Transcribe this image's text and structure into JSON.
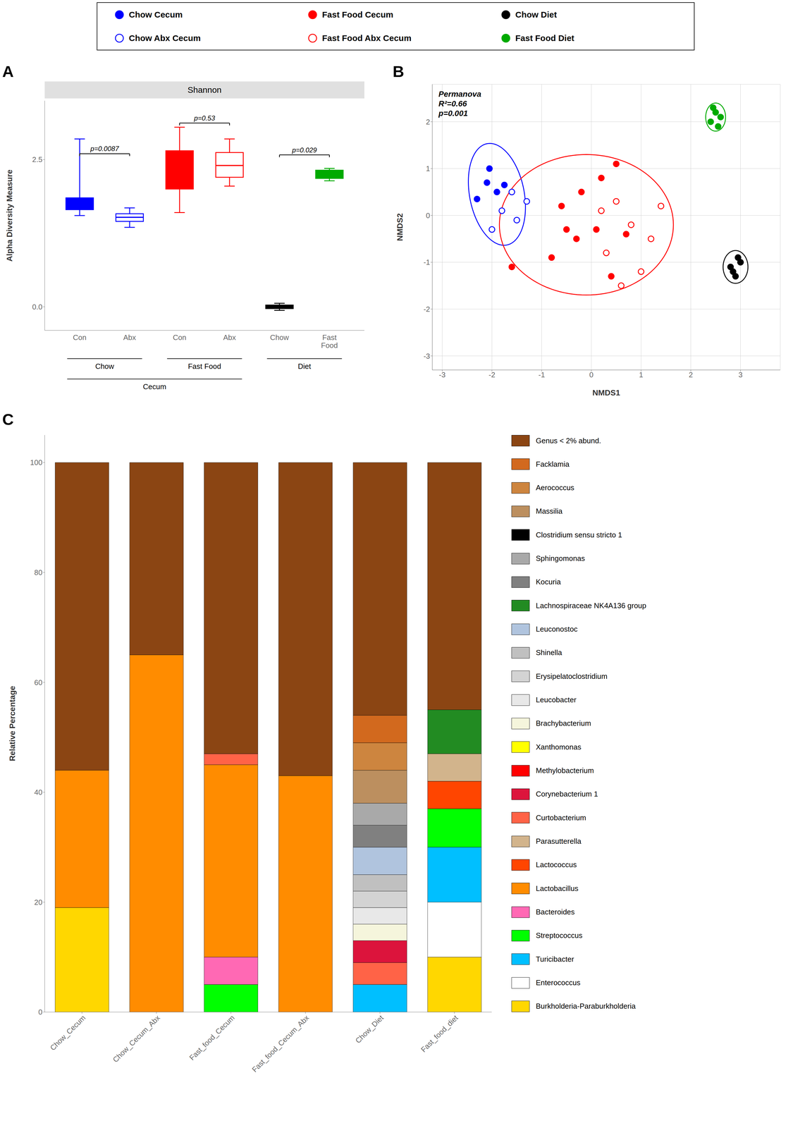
{
  "chart_data": [
    {
      "type": "box",
      "panel_label": "A",
      "title": "Shannon",
      "y_label": "Alpha Diversity Measure",
      "xlim": [
        0.3,
        6.7
      ],
      "xticks": [
        {
          "value": 1,
          "label": "Con"
        },
        {
          "value": 2,
          "label": "Abx"
        },
        {
          "value": 3,
          "label": "Con"
        },
        {
          "value": 4,
          "label": "Abx"
        },
        {
          "value": 5,
          "label": "Chow"
        },
        {
          "value": 6,
          "label": "Fast\nFood"
        }
      ],
      "ylim": [
        -0.4,
        3.5
      ],
      "yticks": [
        {
          "value": 0.0,
          "label": "0.0"
        },
        2.5
      ],
      "boxes": [
        {
          "x": 1,
          "q1": 1.65,
          "median": 1.75,
          "q3": 1.85,
          "whisker_low": 1.55,
          "whisker_high": 2.85,
          "color": "#0000FF",
          "fill": "#0000FF"
        },
        {
          "x": 2,
          "q1": 1.45,
          "median": 1.52,
          "q3": 1.58,
          "whisker_low": 1.35,
          "whisker_high": 1.68,
          "color": "#0000FF",
          "fill": "#FFFFFF"
        },
        {
          "x": 3,
          "q1": 2.0,
          "median": 2.3,
          "q3": 2.65,
          "whisker_low": 1.6,
          "whisker_high": 3.05,
          "color": "#FF0000",
          "fill": "#FF0000"
        },
        {
          "x": 4,
          "q1": 2.2,
          "median": 2.4,
          "q3": 2.62,
          "whisker_low": 2.05,
          "whisker_high": 2.85,
          "color": "#FF0000",
          "fill": "#FFFFFF"
        },
        {
          "x": 5,
          "q1": -0.03,
          "median": 0.0,
          "q3": 0.03,
          "whisker_low": -0.06,
          "whisker_high": 0.06,
          "color": "#000000",
          "fill": "#000000"
        },
        {
          "x": 6,
          "q1": 2.18,
          "median": 2.25,
          "q3": 2.32,
          "whisker_low": 2.14,
          "whisker_high": 2.35,
          "color": "#00AA00",
          "fill": "#00AA00"
        }
      ],
      "brackets": [
        {
          "x1": 1,
          "x2": 2,
          "y": 2.6,
          "text": "p=0.0087"
        },
        {
          "x1": 3,
          "x2": 4,
          "y": 3.12,
          "text": "p=0.53"
        },
        {
          "x1": 5,
          "x2": 6,
          "y": 2.58,
          "text": "p=0.029"
        }
      ],
      "groups": [
        {
          "label": "Chow",
          "x1": 0.75,
          "x2": 2.25
        },
        {
          "label": "Fast Food",
          "x1": 2.75,
          "x2": 4.25
        },
        {
          "label": "Diet",
          "x1": 4.75,
          "x2": 6.25
        }
      ],
      "super_groups": [
        {
          "label": "Cecum",
          "x1": 0.75,
          "x2": 4.25
        }
      ]
    },
    {
      "type": "scatter",
      "panel_label": "B",
      "x_label": "NMDS1",
      "y_label": "NMDS2",
      "xlim": [
        -3.2,
        3.8
      ],
      "ylim": [
        -3.3,
        2.8
      ],
      "xticks": [
        -3,
        -2,
        -1,
        0,
        1,
        2,
        3
      ],
      "yticks": [
        -3,
        -2,
        -1,
        0,
        1,
        2
      ],
      "grid": true,
      "legend": "top",
      "annotation": "Permanova\nR²=0.66\np=0.001",
      "series": [
        {
          "name": "Chow Cecum",
          "color": "#0000FF",
          "marker": "circle",
          "points": [
            [
              -2.1,
              0.7
            ],
            [
              -1.9,
              0.5
            ],
            [
              -2.3,
              0.35
            ],
            [
              -2.05,
              1.0
            ],
            [
              -1.75,
              0.65
            ]
          ]
        },
        {
          "name": "Fast Food Cecum",
          "color": "#FF0000",
          "marker": "circle",
          "points": [
            [
              -1.6,
              -1.1
            ],
            [
              -0.5,
              -0.3
            ],
            [
              0.2,
              0.8
            ],
            [
              0.5,
              1.1
            ],
            [
              -0.3,
              -0.5
            ],
            [
              0.1,
              -0.3
            ],
            [
              -0.8,
              -0.9
            ],
            [
              0.7,
              -0.4
            ],
            [
              0.4,
              -1.3
            ],
            [
              -0.2,
              0.5
            ],
            [
              -0.6,
              0.2
            ]
          ]
        },
        {
          "name": "Chow Diet",
          "color": "#000000",
          "marker": "circle",
          "points": [
            [
              2.8,
              -1.1
            ],
            [
              2.9,
              -1.3
            ],
            [
              3.0,
              -1.0
            ],
            [
              2.85,
              -1.2
            ],
            [
              2.95,
              -0.9
            ]
          ]
        },
        {
          "name": "Chow Abx Cecum",
          "color": "#0000FF",
          "marker": "open_circle",
          "points": [
            [
              -1.8,
              0.1
            ],
            [
              -1.5,
              -0.1
            ],
            [
              -2.0,
              -0.3
            ],
            [
              -1.3,
              0.3
            ],
            [
              -1.6,
              0.5
            ]
          ]
        },
        {
          "name": "Fast Food Abx Cecum",
          "color": "#FF0000",
          "marker": "open_circle",
          "points": [
            [
              0.5,
              0.3
            ],
            [
              0.8,
              -0.2
            ],
            [
              1.2,
              -0.5
            ],
            [
              0.3,
              -0.8
            ],
            [
              1.0,
              -1.2
            ],
            [
              0.6,
              -1.5
            ],
            [
              1.4,
              0.2
            ],
            [
              0.2,
              0.1
            ]
          ]
        },
        {
          "name": "Fast Food Diet",
          "color": "#00AA00",
          "marker": "circle",
          "points": [
            [
              2.4,
              2.0
            ],
            [
              2.5,
              2.2
            ],
            [
              2.6,
              2.1
            ],
            [
              2.45,
              2.3
            ],
            [
              2.55,
              1.9
            ]
          ]
        }
      ],
      "ellipses": [
        {
          "cx": -1.9,
          "cy": 0.45,
          "width": 1.1,
          "height": 2.2,
          "angle": 10,
          "color": "#0000FF"
        },
        {
          "cx": -0.1,
          "cy": -0.2,
          "width": 3.5,
          "height": 3.0,
          "angle": 0,
          "color": "#FF0000"
        },
        {
          "cx": 2.9,
          "cy": -1.1,
          "width": 0.5,
          "height": 0.7,
          "angle": 0,
          "color": "#000000"
        },
        {
          "cx": 2.5,
          "cy": 2.1,
          "width": 0.4,
          "height": 0.6,
          "angle": 0,
          "color": "#00AA00"
        }
      ]
    },
    {
      "type": "bar",
      "stacked": true,
      "panel_label": "C",
      "y_label": "Relative Percentage",
      "legend": "right",
      "categories": [
        "Chow_Cecum",
        "Chow_Cecum_Abx",
        "Fast_food_Cecum",
        "Fast_food_Cecum_Abx",
        "Chow_Diet",
        "Fast_food_diet"
      ],
      "ylim": [
        0,
        105
      ],
      "yticks": [
        0,
        20,
        40,
        60,
        80,
        100
      ],
      "series": [
        {
          "name": "Burkholderia-Paraburkholderia",
          "color": "#FFD700",
          "values": [
            19,
            0,
            0,
            0,
            0,
            10
          ]
        },
        {
          "name": "Enterococcus",
          "color": "#FFFFFF",
          "values": [
            0,
            0,
            0,
            0,
            0,
            10
          ]
        },
        {
          "name": "Turicibacter",
          "color": "#00BFFF",
          "values": [
            0,
            0,
            0,
            0,
            5,
            10
          ]
        },
        {
          "name": "Streptococcus",
          "color": "#00FF00",
          "values": [
            0,
            0,
            5,
            0,
            0,
            7
          ]
        },
        {
          "name": "Bacteroides",
          "color": "#FF69B4",
          "values": [
            0,
            0,
            5,
            0,
            0,
            0
          ]
        },
        {
          "name": "Lactobacillus",
          "color": "#FF8C00",
          "values": [
            25,
            65,
            35,
            43,
            0,
            0
          ]
        },
        {
          "name": "Lactococcus",
          "color": "#FF4500",
          "values": [
            0,
            0,
            0,
            0,
            0,
            5
          ]
        },
        {
          "name": "Parasutterella",
          "color": "#D2B48C",
          "values": [
            0,
            0,
            0,
            0,
            0,
            5
          ]
        },
        {
          "name": "Curtobacterium",
          "color": "#FF6347",
          "values": [
            0,
            0,
            2,
            0,
            4,
            0
          ]
        },
        {
          "name": "Corynebacterium 1",
          "color": "#DC143C",
          "values": [
            0,
            0,
            0,
            0,
            4,
            0
          ]
        },
        {
          "name": "Methylobacterium",
          "color": "#FF0000",
          "values": [
            0,
            0,
            0,
            0,
            0,
            0
          ]
        },
        {
          "name": "Xanthomonas",
          "color": "#FFFF00",
          "values": [
            0,
            0,
            0,
            0,
            0,
            0
          ]
        },
        {
          "name": "Brachybacterium",
          "color": "#F5F5DC",
          "values": [
            0,
            0,
            0,
            0,
            3,
            0
          ]
        },
        {
          "name": "Leucobacter",
          "color": "#E8E8E8",
          "values": [
            0,
            0,
            0,
            0,
            3,
            0
          ]
        },
        {
          "name": "Erysipelatoclostridium",
          "color": "#D3D3D3",
          "values": [
            0,
            0,
            0,
            0,
            3,
            0
          ]
        },
        {
          "name": "Shinella",
          "color": "#C0C0C0",
          "values": [
            0,
            0,
            0,
            0,
            3,
            0
          ]
        },
        {
          "name": "Leuconostoc",
          "color": "#B0C4DE",
          "values": [
            0,
            0,
            0,
            0,
            5,
            0
          ]
        },
        {
          "name": "Lachnospiraceae NK4A136 group",
          "color": "#228B22",
          "values": [
            0,
            0,
            0,
            0,
            0,
            8
          ]
        },
        {
          "name": "Kocuria",
          "color": "#808080",
          "values": [
            0,
            0,
            0,
            0,
            4,
            0
          ]
        },
        {
          "name": "Sphingomonas",
          "color": "#A9A9A9",
          "values": [
            0,
            0,
            0,
            0,
            4,
            0
          ]
        },
        {
          "name": "Clostridium sensu stricto 1",
          "color": "#000000",
          "values": [
            0,
            0,
            0,
            0,
            0,
            0
          ]
        },
        {
          "name": "Massilia",
          "color": "#BC8F5F",
          "values": [
            0,
            0,
            0,
            0,
            6,
            0
          ]
        },
        {
          "name": "Aerococcus",
          "color": "#CD853F",
          "values": [
            0,
            0,
            0,
            0,
            5,
            0
          ]
        },
        {
          "name": "Facklamia",
          "color": "#D2691E",
          "values": [
            0,
            0,
            0,
            0,
            5,
            0
          ]
        },
        {
          "name": "Genus < 2% abund.",
          "color": "#8B4513",
          "values": [
            56,
            35,
            53,
            57,
            46,
            45
          ]
        }
      ]
    }
  ]
}
